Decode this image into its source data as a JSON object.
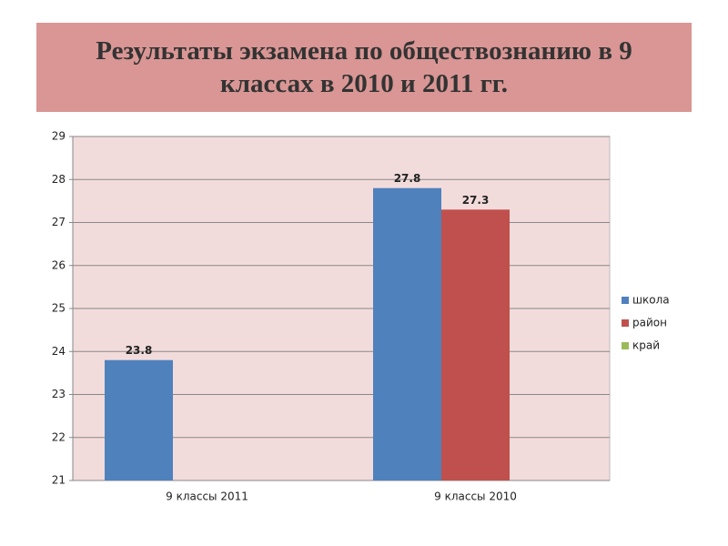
{
  "chart_data": {
    "type": "bar",
    "title": "Результаты экзамена по обществознанию в 9 классах в 2010 и 2011 гг.",
    "categories": [
      "9 классы 2011",
      "9 классы 2010"
    ],
    "series": [
      {
        "name": "школа",
        "color": "#4f81bd",
        "values": [
          23.8,
          27.8
        ]
      },
      {
        "name": "район",
        "color": "#c0504d",
        "values": [
          null,
          27.3
        ]
      },
      {
        "name": "край",
        "color": "#9bbb59",
        "values": [
          null,
          null
        ]
      }
    ],
    "ylim": [
      21,
      29
    ],
    "yticks": [
      21,
      22,
      23,
      24,
      25,
      26,
      27,
      28,
      29
    ],
    "grid": true,
    "legend": "right"
  }
}
